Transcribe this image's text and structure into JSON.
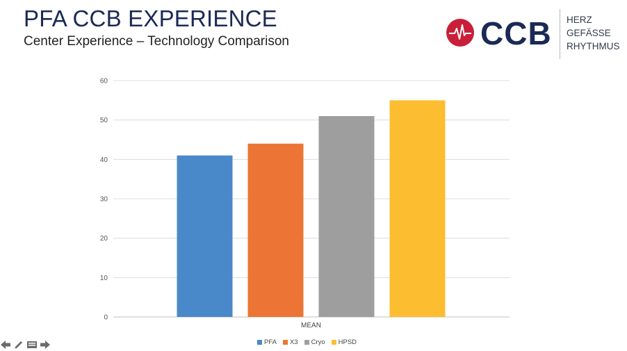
{
  "header": {
    "title": "PFA CCB EXPERIENCE",
    "subtitle": "Center Experience – Technology Comparison"
  },
  "logo": {
    "name": "CCB",
    "lines": [
      "HERZ",
      "GEFÄSSE",
      "RHYTHMUS"
    ],
    "icon": "heartbeat-circle-icon",
    "color_primary": "#1b2a55",
    "color_accent": "#c8203a"
  },
  "chart_data": {
    "type": "bar",
    "title": "",
    "xlabel": "",
    "ylabel": "",
    "categories": [
      "MEAN"
    ],
    "series": [
      {
        "name": "PFA",
        "values": [
          41
        ],
        "color": "#4a89c9"
      },
      {
        "name": "X3",
        "values": [
          44
        ],
        "color": "#ec7535"
      },
      {
        "name": "Cryo",
        "values": [
          51
        ],
        "color": "#9e9e9e"
      },
      {
        "name": "HPSD",
        "values": [
          55
        ],
        "color": "#fdbd30"
      }
    ],
    "ylim": [
      0,
      60
    ],
    "yticks": [
      0,
      10,
      20,
      30,
      40,
      50,
      60
    ],
    "grid": true,
    "legend_position": "bottom"
  },
  "nav": {
    "icons": [
      "arrow-left-icon",
      "pen-icon",
      "menu-icon",
      "arrow-right-icon"
    ]
  }
}
